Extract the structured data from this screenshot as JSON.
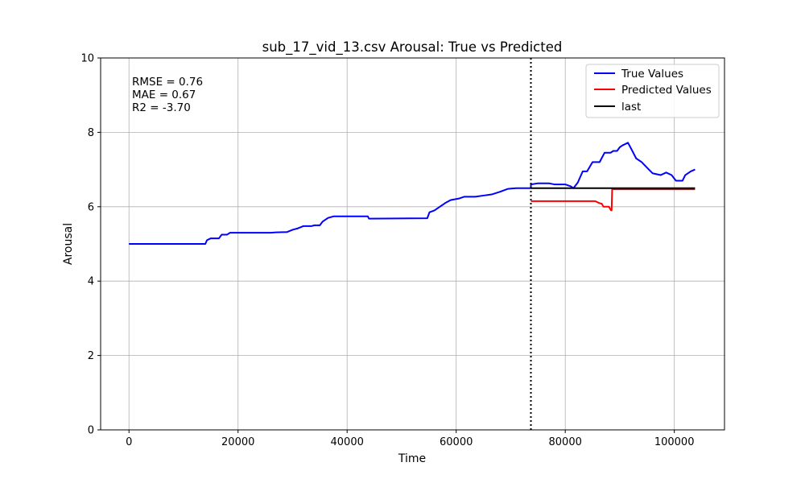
{
  "chart_data": {
    "type": "line",
    "title": "sub_17_vid_13.csv Arousal: True vs Predicted",
    "xlabel": "Time",
    "ylabel": "Arousal",
    "xlim": [
      -5200,
      109200
    ],
    "ylim": [
      0,
      10
    ],
    "x_ticks": [
      0,
      20000,
      40000,
      60000,
      80000,
      100000
    ],
    "x_tick_labels": [
      "0",
      "20000",
      "40000",
      "60000",
      "80000",
      "100000"
    ],
    "y_ticks": [
      0,
      2,
      4,
      6,
      8,
      10
    ],
    "y_tick_labels": [
      "0",
      "2",
      "4",
      "6",
      "8",
      "10"
    ],
    "grid": true,
    "legend_position": "top-right",
    "vline": {
      "x": 73700,
      "style": "dotted",
      "color": "#000000"
    },
    "stats": [
      "RMSE = 0.76",
      "MAE = 0.67",
      "R2 = -3.70"
    ],
    "series": [
      {
        "name": "True Values",
        "color": "#0000ff",
        "points": [
          [
            0,
            5.0
          ],
          [
            14000,
            5.0
          ],
          [
            14300,
            5.1
          ],
          [
            15000,
            5.15
          ],
          [
            16500,
            5.15
          ],
          [
            17000,
            5.25
          ],
          [
            18000,
            5.25
          ],
          [
            18500,
            5.3
          ],
          [
            26000,
            5.3
          ],
          [
            27000,
            5.31
          ],
          [
            29000,
            5.32
          ],
          [
            30000,
            5.38
          ],
          [
            31000,
            5.42
          ],
          [
            32000,
            5.48
          ],
          [
            33500,
            5.48
          ],
          [
            34000,
            5.5
          ],
          [
            35000,
            5.5
          ],
          [
            35500,
            5.6
          ],
          [
            36500,
            5.7
          ],
          [
            37500,
            5.74
          ],
          [
            43800,
            5.74
          ],
          [
            44000,
            5.68
          ],
          [
            54700,
            5.69
          ],
          [
            55100,
            5.85
          ],
          [
            56000,
            5.9
          ],
          [
            57000,
            6.0
          ],
          [
            58000,
            6.1
          ],
          [
            59000,
            6.18
          ],
          [
            60500,
            6.22
          ],
          [
            61500,
            6.27
          ],
          [
            63500,
            6.27
          ],
          [
            65000,
            6.3
          ],
          [
            66500,
            6.33
          ],
          [
            68000,
            6.4
          ],
          [
            69500,
            6.48
          ],
          [
            71000,
            6.5
          ],
          [
            73700,
            6.5
          ],
          [
            73700,
            6.6
          ],
          [
            75000,
            6.63
          ],
          [
            77000,
            6.63
          ],
          [
            78000,
            6.6
          ],
          [
            80000,
            6.6
          ],
          [
            81000,
            6.55
          ],
          [
            81500,
            6.5
          ],
          [
            82300,
            6.65
          ],
          [
            83200,
            6.95
          ],
          [
            84000,
            6.95
          ],
          [
            85000,
            7.2
          ],
          [
            86300,
            7.2
          ],
          [
            87200,
            7.45
          ],
          [
            88300,
            7.45
          ],
          [
            88800,
            7.5
          ],
          [
            89500,
            7.5
          ],
          [
            90000,
            7.6
          ],
          [
            90500,
            7.65
          ],
          [
            91500,
            7.72
          ],
          [
            92300,
            7.5
          ],
          [
            93000,
            7.3
          ],
          [
            94000,
            7.2
          ],
          [
            95000,
            7.05
          ],
          [
            96000,
            6.9
          ],
          [
            97500,
            6.85
          ],
          [
            98500,
            6.92
          ],
          [
            99500,
            6.85
          ],
          [
            100300,
            6.7
          ],
          [
            101500,
            6.7
          ],
          [
            102000,
            6.85
          ],
          [
            103000,
            6.95
          ],
          [
            103800,
            7.0
          ]
        ]
      },
      {
        "name": "Predicted Values",
        "color": "#ff0000",
        "points": [
          [
            73700,
            6.15
          ],
          [
            85500,
            6.15
          ],
          [
            86200,
            6.1
          ],
          [
            86700,
            6.08
          ],
          [
            87000,
            6.0
          ],
          [
            88000,
            6.0
          ],
          [
            88400,
            5.9
          ],
          [
            88500,
            5.9
          ],
          [
            88600,
            6.47
          ],
          [
            103800,
            6.47
          ]
        ]
      },
      {
        "name": "last",
        "color": "#000000",
        "points": [
          [
            73700,
            6.5
          ],
          [
            103800,
            6.5
          ]
        ]
      }
    ]
  }
}
